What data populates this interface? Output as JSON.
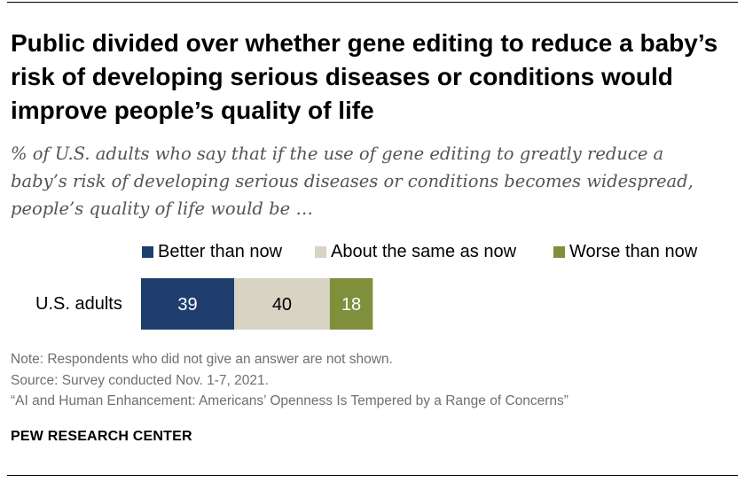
{
  "title": "Public divided over whether gene editing to reduce a baby’s risk of developing serious diseases or conditions would improve people’s quality of life",
  "subtitle": "% of U.S. adults who say that if the use of gene editing to greatly reduce a baby’s risk of developing serious diseases or conditions becomes widespread, people’s quality of life would be …",
  "notes": {
    "note": "Note: Respondents who did not give an answer are not shown.",
    "source": "Source: Survey conducted Nov. 1-7, 2021.",
    "report": "“AI and Human Enhancement: Americans’ Openness Is Tempered by a Range of Concerns”"
  },
  "footer": "PEW RESEARCH CENTER",
  "colors": {
    "better": "#1f3e6e",
    "same": "#d9d3c4",
    "worse": "#7f8f3c",
    "better_text": "#ffffff",
    "same_text": "#000000",
    "worse_text": "#ffffff"
  },
  "chart_data": {
    "type": "bar",
    "orientation": "horizontal",
    "stacked": true,
    "categories": [
      "U.S. adults"
    ],
    "series": [
      {
        "name": "Better than now",
        "values": [
          39
        ]
      },
      {
        "name": "About the same as now",
        "values": [
          40
        ]
      },
      {
        "name": "Worse than now",
        "values": [
          18
        ]
      }
    ],
    "legend_position": "top-right",
    "grid": false
  }
}
